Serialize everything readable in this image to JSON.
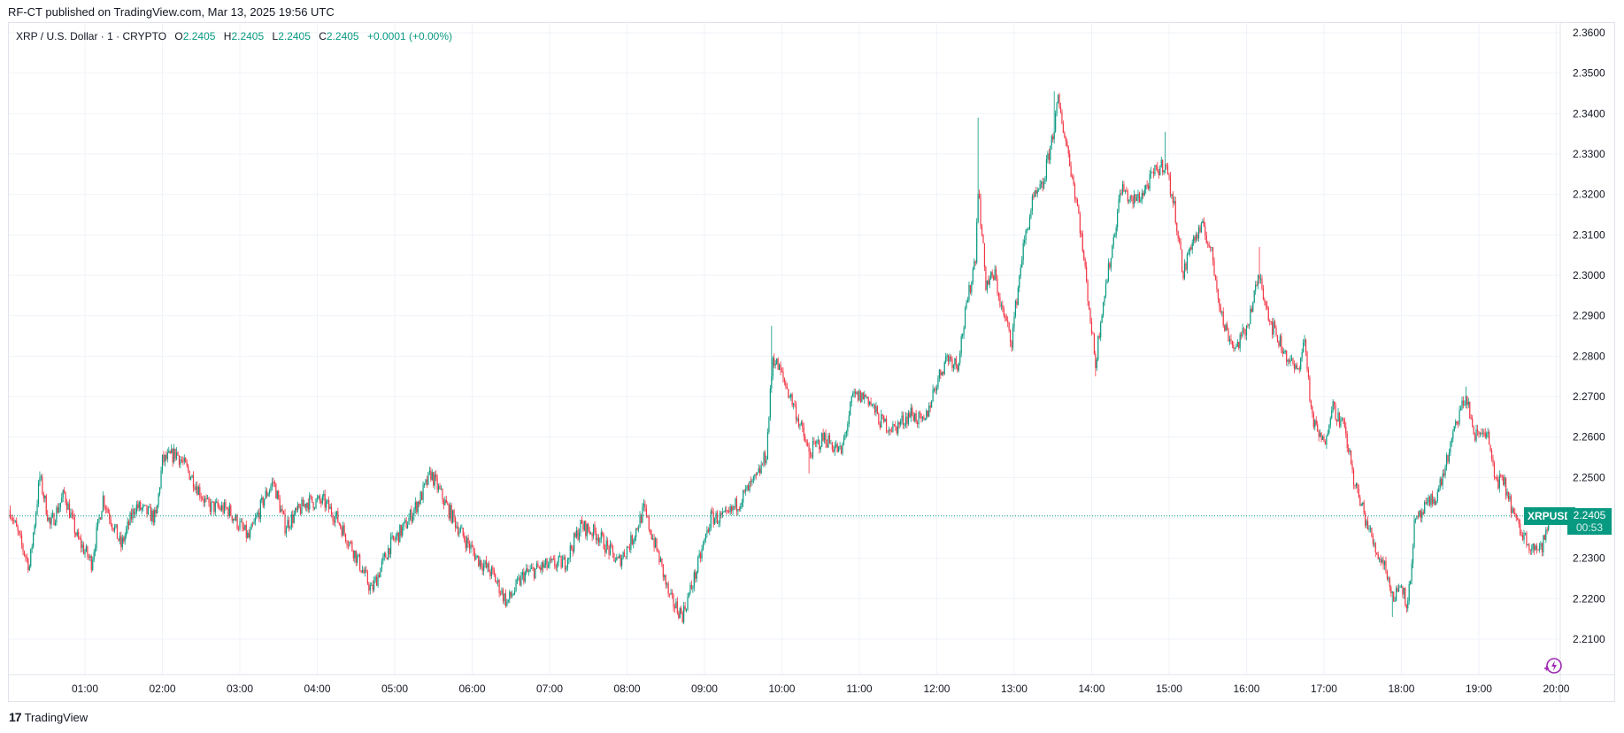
{
  "header": {
    "published": "RF-CT published on TradingView.com, Mar 13, 2025 19:56 UTC"
  },
  "legend": {
    "symbol": "XRP / U.S. Dollar · 1 · CRYPTO",
    "o_key": "O",
    "o": "2.2405",
    "h_key": "H",
    "h": "2.2405",
    "l_key": "L",
    "l": "2.2405",
    "c_key": "C",
    "c": "2.2405",
    "change": "+0.0001 (+0.00%)"
  },
  "last_price": {
    "symbol": "XRPUSD",
    "price": "2.2405",
    "countdown": "00:53"
  },
  "footer": {
    "logo_text": "TradingView",
    "logo_mark": "17"
  },
  "icons": {
    "replay": "lightning-circle-icon"
  },
  "colors": {
    "up": "#089981",
    "down": "#F23645",
    "grid": "#f0f3fa",
    "accent": "#089981",
    "icon": "#9c27b0"
  },
  "chart_data": {
    "type": "candlestick",
    "interval": "1 minute",
    "title": "XRP / U.S. Dollar · 1 · CRYPTO",
    "ylim": [
      2.2,
      2.365
    ],
    "xlim": [
      "00:00",
      "20:04"
    ],
    "grid": true,
    "y_ticks": [
      "2.3600",
      "2.3500",
      "2.3400",
      "2.3300",
      "2.3200",
      "2.3100",
      "2.3000",
      "2.2900",
      "2.2800",
      "2.2700",
      "2.2600",
      "2.2500",
      "2.2400",
      "2.2300",
      "2.2200",
      "2.2100"
    ],
    "x_ticks": [
      "01:00",
      "02:00",
      "03:00",
      "04:00",
      "05:00",
      "06:00",
      "07:00",
      "08:00",
      "09:00",
      "10:00",
      "11:00",
      "12:00",
      "13:00",
      "14:00",
      "15:00",
      "16:00",
      "17:00",
      "18:00",
      "19:00",
      "20:00"
    ],
    "last_price_line": 2.2405,
    "close_path": [
      [
        "00:02",
        2.242
      ],
      [
        "00:10",
        2.234
      ],
      [
        "00:17",
        2.228
      ],
      [
        "00:25",
        2.25
      ],
      [
        "00:33",
        2.238
      ],
      [
        "00:44",
        2.246
      ],
      [
        "00:54",
        2.235
      ],
      [
        "01:05",
        2.229
      ],
      [
        "01:14",
        2.245
      ],
      [
        "01:28",
        2.233
      ],
      [
        "01:39",
        2.243
      ],
      [
        "01:55",
        2.24
      ],
      [
        "02:00",
        2.254
      ],
      [
        "02:11",
        2.256
      ],
      [
        "02:23",
        2.25
      ],
      [
        "02:35",
        2.243
      ],
      [
        "02:51",
        2.242
      ],
      [
        "03:07",
        2.235
      ],
      [
        "03:19",
        2.245
      ],
      [
        "03:26",
        2.249
      ],
      [
        "03:35",
        2.238
      ],
      [
        "03:52",
        2.244
      ],
      [
        "04:05",
        2.244
      ],
      [
        "04:15",
        2.24
      ],
      [
        "04:28",
        2.232
      ],
      [
        "04:42",
        2.222
      ],
      [
        "04:56",
        2.233
      ],
      [
        "05:08",
        2.238
      ],
      [
        "05:20",
        2.245
      ],
      [
        "05:28",
        2.251
      ],
      [
        "05:40",
        2.243
      ],
      [
        "05:52",
        2.236
      ],
      [
        "06:04",
        2.23
      ],
      [
        "06:16",
        2.226
      ],
      [
        "06:27",
        2.219
      ],
      [
        "06:40",
        2.226
      ],
      [
        "06:56",
        2.228
      ],
      [
        "07:12",
        2.229
      ],
      [
        "07:24",
        2.238
      ],
      [
        "07:37",
        2.236
      ],
      [
        "07:53",
        2.229
      ],
      [
        "08:03",
        2.234
      ],
      [
        "08:13",
        2.242
      ],
      [
        "08:25",
        2.23
      ],
      [
        "08:33",
        2.22
      ],
      [
        "08:43",
        2.216
      ],
      [
        "08:53",
        2.226
      ],
      [
        "09:05",
        2.24
      ],
      [
        "09:17",
        2.24
      ],
      [
        "09:29",
        2.245
      ],
      [
        "09:41",
        2.25
      ],
      [
        "09:48",
        2.256
      ],
      [
        "09:53",
        2.28
      ],
      [
        "09:59",
        2.276
      ],
      [
        "10:09",
        2.268
      ],
      [
        "10:21",
        2.256
      ],
      [
        "10:33",
        2.26
      ],
      [
        "10:46",
        2.256
      ],
      [
        "10:55",
        2.27
      ],
      [
        "11:06",
        2.27
      ],
      [
        "11:16",
        2.264
      ],
      [
        "11:27",
        2.262
      ],
      [
        "11:40",
        2.266
      ],
      [
        "11:50",
        2.263
      ],
      [
        "11:58",
        2.272
      ],
      [
        "12:08",
        2.28
      ],
      [
        "12:16",
        2.278
      ],
      [
        "12:22",
        2.29
      ],
      [
        "12:30",
        2.305
      ],
      [
        "12:32",
        2.322
      ],
      [
        "12:38",
        2.298
      ],
      [
        "12:45",
        2.3
      ],
      [
        "12:50",
        2.292
      ],
      [
        "12:58",
        2.284
      ],
      [
        "13:06",
        2.305
      ],
      [
        "13:14",
        2.318
      ],
      [
        "13:22",
        2.322
      ],
      [
        "13:30",
        2.335
      ],
      [
        "13:34",
        2.343
      ],
      [
        "13:42",
        2.33
      ],
      [
        "13:50",
        2.315
      ],
      [
        "13:56",
        2.298
      ],
      [
        "14:03",
        2.278
      ],
      [
        "14:08",
        2.292
      ],
      [
        "14:15",
        2.305
      ],
      [
        "14:23",
        2.322
      ],
      [
        "14:31",
        2.318
      ],
      [
        "14:39",
        2.32
      ],
      [
        "14:48",
        2.325
      ],
      [
        "14:57",
        2.328
      ],
      [
        "15:05",
        2.315
      ],
      [
        "15:11",
        2.3
      ],
      [
        "15:17",
        2.308
      ],
      [
        "15:27",
        2.312
      ],
      [
        "15:33",
        2.305
      ],
      [
        "15:42",
        2.288
      ],
      [
        "15:51",
        2.282
      ],
      [
        "15:59",
        2.286
      ],
      [
        "16:10",
        2.3
      ],
      [
        "16:19",
        2.288
      ],
      [
        "16:31",
        2.28
      ],
      [
        "16:39",
        2.276
      ],
      [
        "16:45",
        2.284
      ],
      [
        "16:51",
        2.264
      ],
      [
        "17:00",
        2.258
      ],
      [
        "17:06",
        2.268
      ],
      [
        "17:16",
        2.262
      ],
      [
        "17:24",
        2.248
      ],
      [
        "17:34",
        2.238
      ],
      [
        "17:40",
        2.232
      ],
      [
        "17:48",
        2.228
      ],
      [
        "17:53",
        2.22
      ],
      [
        "18:00",
        2.224
      ],
      [
        "18:05",
        2.218
      ],
      [
        "18:10",
        2.238
      ],
      [
        "18:18",
        2.242
      ],
      [
        "18:28",
        2.246
      ],
      [
        "18:36",
        2.255
      ],
      [
        "18:44",
        2.265
      ],
      [
        "18:50",
        2.27
      ],
      [
        "18:57",
        2.26
      ],
      [
        "19:06",
        2.262
      ],
      [
        "19:12",
        2.25
      ],
      [
        "19:20",
        2.248
      ],
      [
        "19:30",
        2.238
      ],
      [
        "19:38",
        2.234
      ],
      [
        "19:48",
        2.232
      ],
      [
        "19:56",
        2.2405
      ]
    ],
    "extremes": [
      [
        "00:25",
        2.2515
      ],
      [
        "02:11",
        2.2575
      ],
      [
        "05:28",
        2.2525
      ],
      [
        "06:27",
        2.218
      ],
      [
        "08:43",
        2.214
      ],
      [
        "09:52",
        2.2875
      ],
      [
        "10:21",
        2.251
      ],
      [
        "12:32",
        2.339
      ],
      [
        "13:31",
        2.3455
      ],
      [
        "14:03",
        2.275
      ],
      [
        "14:57",
        2.3355
      ],
      [
        "16:10",
        2.307
      ],
      [
        "17:53",
        2.2155
      ],
      [
        "18:50",
        2.2725
      ]
    ]
  }
}
